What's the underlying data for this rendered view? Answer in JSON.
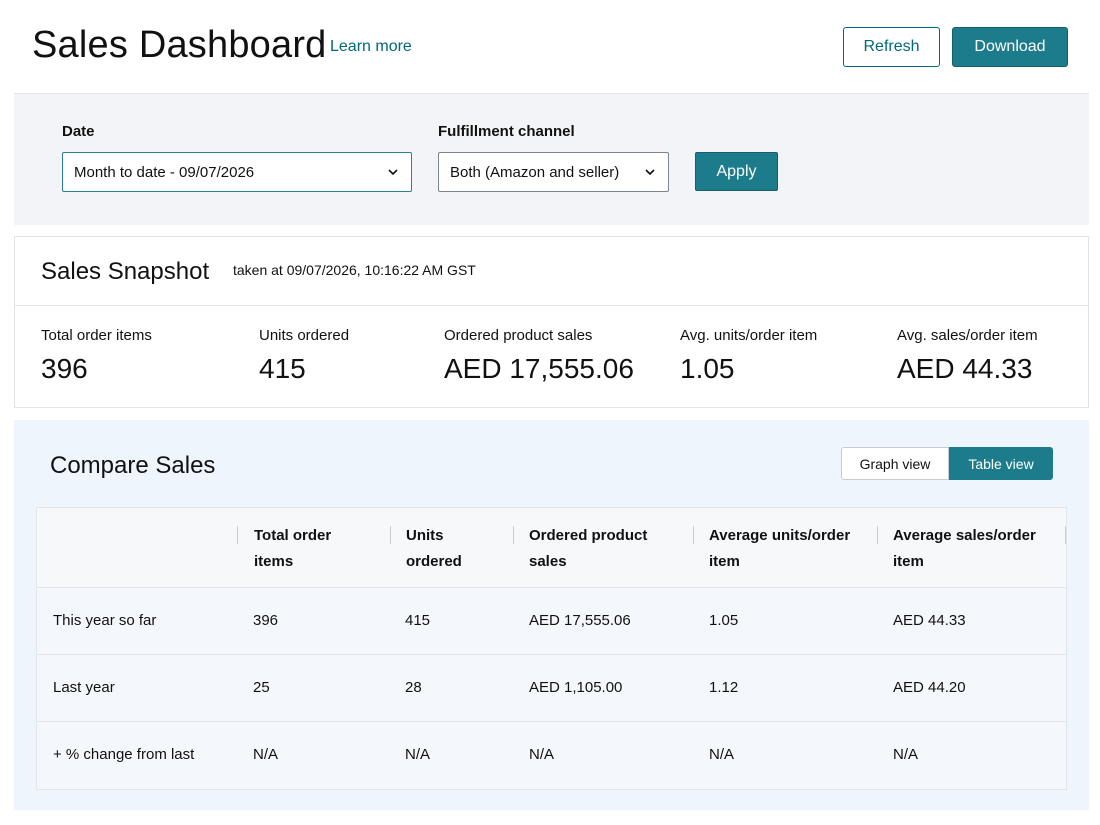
{
  "header": {
    "title": "Sales Dashboard",
    "learn_more": "Learn more",
    "refresh_label": "Refresh",
    "download_label": "Download"
  },
  "filters": {
    "date_label": "Date",
    "date_value": "Month to date - 09/07/2026",
    "channel_label": "Fulfillment channel",
    "channel_value": "Both (Amazon and seller)",
    "apply_label": "Apply"
  },
  "snapshot": {
    "title": "Sales Snapshot",
    "taken_at": "taken at 09/07/2026, 10:16:22 AM GST",
    "metrics": [
      {
        "label": "Total order items",
        "value": "396"
      },
      {
        "label": "Units ordered",
        "value": "415"
      },
      {
        "label": "Ordered product sales",
        "value": "AED 17,555.06"
      },
      {
        "label": "Avg. units/order item",
        "value": "1.05"
      },
      {
        "label": "Avg. sales/order item",
        "value": "AED 44.33"
      }
    ]
  },
  "compare": {
    "title": "Compare Sales",
    "graph_view_label": "Graph view",
    "table_view_label": "Table view",
    "active_view": "Table view",
    "columns": [
      {
        "line1": "Total order",
        "line2": "items"
      },
      {
        "line1": "Units",
        "line2": "ordered"
      },
      {
        "line1": "Ordered product",
        "line2": "sales"
      },
      {
        "line1": "Average units/order",
        "line2": "item"
      },
      {
        "line1": "Average sales/order",
        "line2": "item"
      }
    ],
    "rows": [
      {
        "label": "This year so far",
        "cells": [
          "396",
          "415",
          "AED 17,555.06",
          "1.05",
          "AED 44.33"
        ]
      },
      {
        "label": "Last year",
        "cells": [
          "25",
          "28",
          "AED 1,105.00",
          "1.12",
          "AED 44.20"
        ]
      },
      {
        "label": "+ % change from last",
        "cells": [
          "N/A",
          "N/A",
          "N/A",
          "N/A",
          "N/A"
        ]
      }
    ]
  },
  "icons": {
    "dropdown": "chevron-down-icon"
  },
  "colors": {
    "accent": "#1d7c8c",
    "link": "#00697a",
    "filter_bg": "#f3f4f7",
    "compare_bg": "#eef5fd"
  }
}
